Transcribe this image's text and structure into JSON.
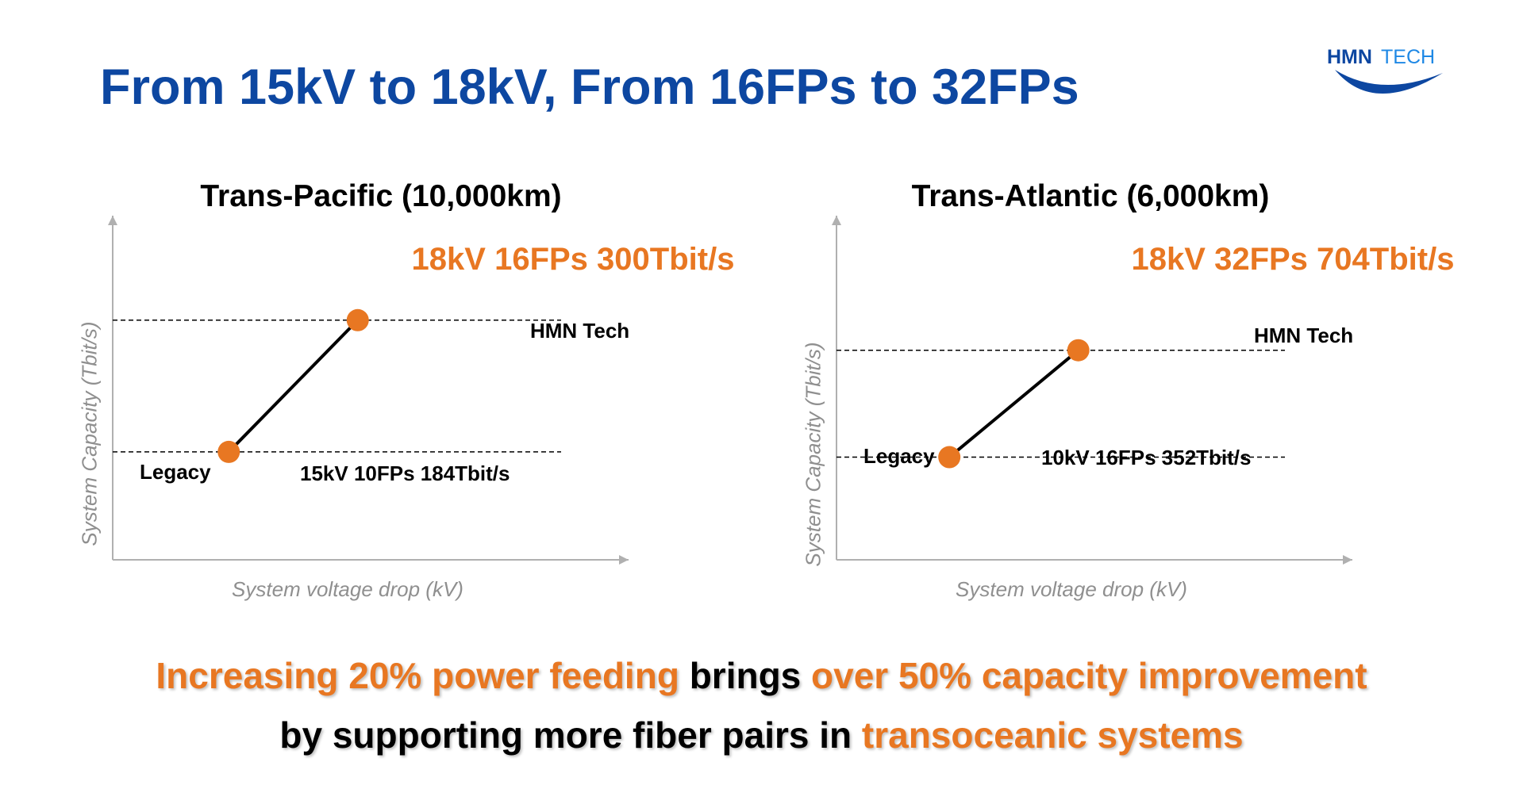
{
  "title": "From 15kV to 18kV, From 16FPs to 32FPs",
  "logo": {
    "text_left": "HMN",
    "text_right": "TECH",
    "colors": {
      "dark": "#0d47a1",
      "light": "#1e88e5"
    }
  },
  "colors": {
    "accent": "#e87722",
    "title": "#0d47a1",
    "axis": "#b0b0b0",
    "axis_label": "#8f8f8f"
  },
  "chart_data": [
    {
      "type": "line",
      "title": "Trans-Pacific (10,000km)",
      "headline": "18kV 16FPs 300Tbit/s",
      "xlabel": "System voltage drop (kV)",
      "ylabel": "System Capacity (Tbit/s)",
      "points": [
        {
          "name": "Legacy",
          "label": "15kV 10FPs 184Tbit/s",
          "x": 15,
          "y": 184
        },
        {
          "name": "HMN Tech",
          "label": "18kV 16FPs 300Tbit/s",
          "x": 18,
          "y": 300
        }
      ],
      "xlim": [
        12.3,
        24.3
      ],
      "ylim": [
        89,
        392
      ],
      "reference_lines": "dashed horizontal at each point"
    },
    {
      "type": "line",
      "title": "Trans-Atlantic (6,000km)",
      "headline": "18kV 32FPs 704Tbit/s",
      "xlabel": "System voltage drop (kV)",
      "ylabel": "System Capacity (Tbit/s)",
      "points": [
        {
          "name": "Legacy",
          "label": "10kV 16FPs 352Tbit/s",
          "x": 10,
          "y": 352
        },
        {
          "name": "HMN Tech",
          "label": "18kV 32FPs 704Tbit/s",
          "x": 18,
          "y": 704
        }
      ],
      "xlim": [
        3,
        35
      ],
      "ylim": [
        14,
        1147
      ],
      "reference_lines": "dashed horizontal at each point"
    }
  ],
  "footer": {
    "line1": [
      {
        "text": "Increasing 20% power feeding",
        "accent": true
      },
      {
        "text": " brings ",
        "accent": false
      },
      {
        "text": "over 50% capacity improvement",
        "accent": true
      }
    ],
    "line2": [
      {
        "text": "by supporting more fiber pairs in ",
        "accent": false
      },
      {
        "text": "transoceanic systems",
        "accent": true
      }
    ]
  }
}
